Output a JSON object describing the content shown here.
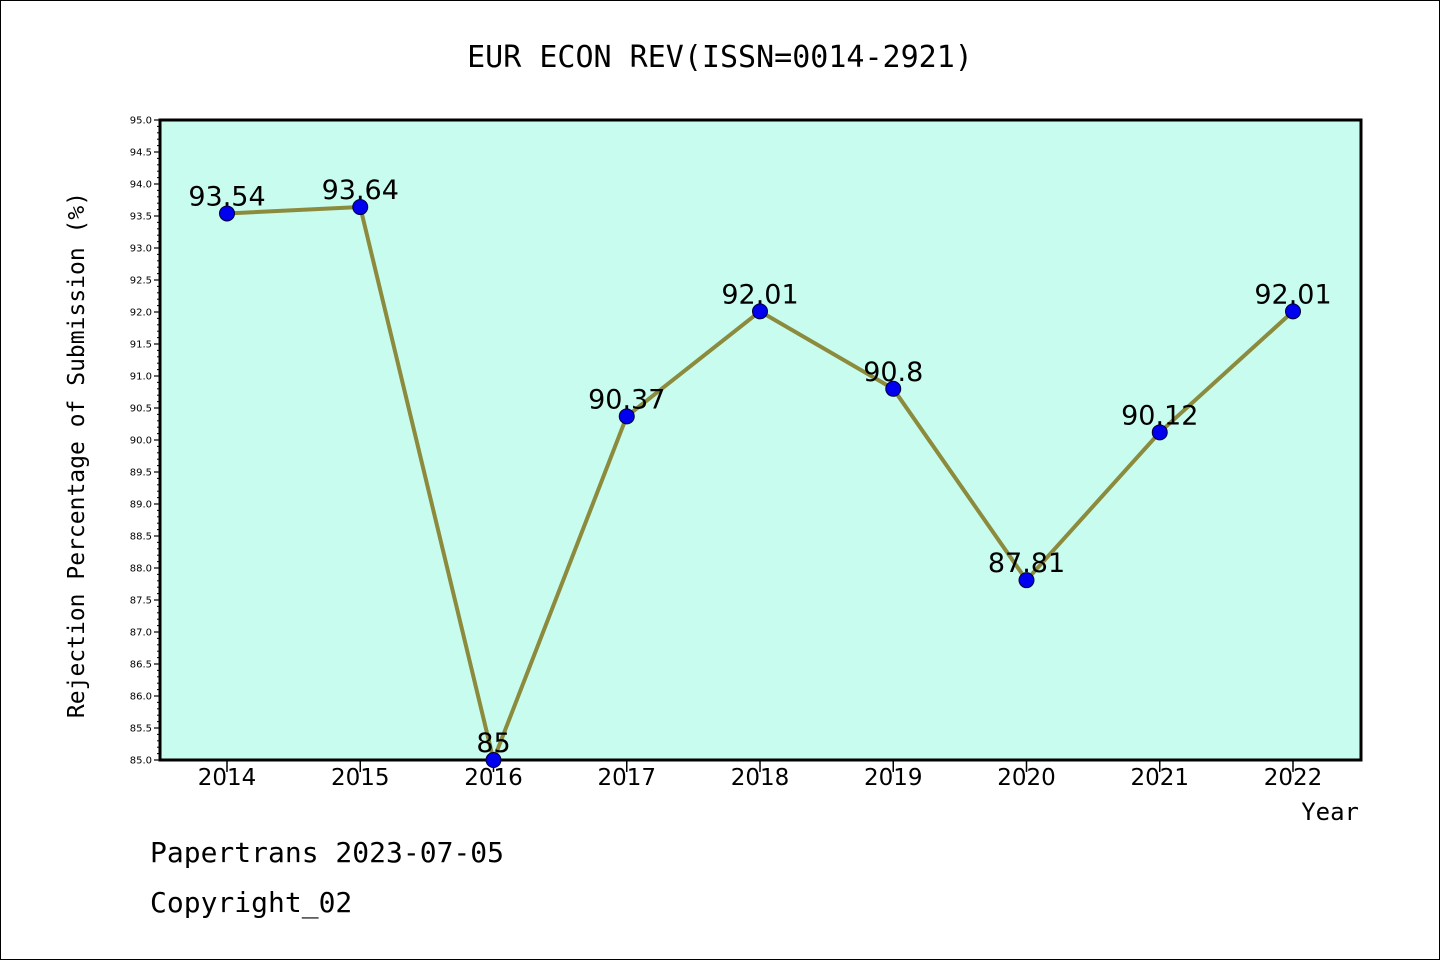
{
  "chart_data": {
    "type": "line",
    "title": "EUR ECON REV(ISSN=0014-2921)",
    "xlabel": "Year",
    "ylabel": "Rejection Percentage of Submission (%)",
    "categories": [
      "2014",
      "2015",
      "2016",
      "2017",
      "2018",
      "2019",
      "2020",
      "2021",
      "2022"
    ],
    "values": [
      93.54,
      93.64,
      85,
      90.37,
      92.01,
      90.8,
      87.81,
      90.12,
      92.01
    ],
    "data_labels": [
      "93.54",
      "93.64",
      "85",
      "90.37",
      "92.01",
      "90.8",
      "87.81",
      "90.12",
      "92.01"
    ],
    "ylim": [
      85.0,
      95.0
    ],
    "y_ticks": [
      "85.0",
      "85.5",
      "86.0",
      "86.5",
      "87.0",
      "87.5",
      "88.0",
      "88.5",
      "89.0",
      "89.5",
      "90.0",
      "90.5",
      "91.0",
      "91.5",
      "92.0",
      "92.5",
      "93.0",
      "93.5",
      "94.0",
      "94.5",
      "95.0"
    ],
    "grid": false,
    "colors": {
      "plot_background": "#c8fcee",
      "line": "#8c8a3c",
      "marker": "#0000ee",
      "axis": "#000000"
    }
  },
  "footer": {
    "line1": "Papertrans 2023-07-05",
    "line2": "Copyright_02"
  }
}
